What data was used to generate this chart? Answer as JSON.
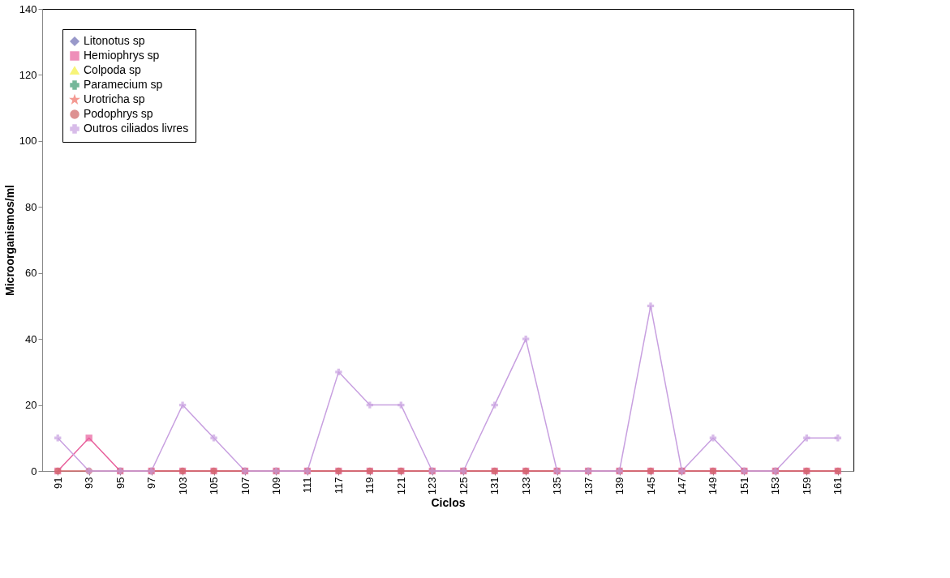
{
  "chart_data": {
    "type": "line",
    "xlabel": "Ciclos",
    "ylabel": "Microorganismos/ml",
    "categories": [
      "91",
      "93",
      "95",
      "97",
      "103",
      "105",
      "107",
      "109",
      "111",
      "117",
      "119",
      "121",
      "123",
      "125",
      "131",
      "133",
      "135",
      "137",
      "139",
      "145",
      "147",
      "149",
      "151",
      "153",
      "159",
      "161"
    ],
    "series": [
      {
        "name": "Litonotus sp",
        "color": "#6e6eb4",
        "marker": "diamond",
        "values": [
          null,
          null,
          null,
          null,
          null,
          null,
          null,
          null,
          null,
          null,
          null,
          null,
          null,
          null,
          null,
          null,
          null,
          null,
          null,
          null,
          null,
          null,
          null,
          null,
          null,
          null
        ]
      },
      {
        "name": "Hemiophrys sp",
        "color": "#e8609c",
        "marker": "square",
        "values": [
          0,
          10,
          0,
          0,
          0,
          0,
          0,
          0,
          0,
          0,
          0,
          0,
          0,
          0,
          0,
          0,
          0,
          0,
          0,
          0,
          0,
          0,
          0,
          0,
          0,
          0
        ]
      },
      {
        "name": "Colpoda sp",
        "color": "#f5f040",
        "marker": "triangle",
        "values": [
          null,
          null,
          null,
          null,
          null,
          null,
          null,
          null,
          null,
          null,
          null,
          null,
          null,
          null,
          null,
          null,
          null,
          null,
          null,
          null,
          null,
          null,
          null,
          null,
          null,
          null
        ]
      },
      {
        "name": "Paramecium sp",
        "color": "#3c9a70",
        "marker": "cross",
        "values": [
          null,
          null,
          null,
          null,
          null,
          null,
          null,
          null,
          null,
          null,
          null,
          null,
          null,
          null,
          null,
          null,
          null,
          null,
          null,
          null,
          null,
          null,
          null,
          null,
          null,
          null
        ]
      },
      {
        "name": "Urotricha sp",
        "color": "#f07066",
        "marker": "star",
        "values": [
          null,
          null,
          null,
          null,
          null,
          null,
          null,
          null,
          null,
          null,
          null,
          null,
          null,
          null,
          null,
          null,
          null,
          null,
          null,
          null,
          null,
          null,
          null,
          null,
          null,
          null
        ]
      },
      {
        "name": "Podophrys sp",
        "color": "#d06464",
        "marker": "circle",
        "values": [
          0,
          0,
          0,
          0,
          0,
          0,
          0,
          0,
          0,
          0,
          0,
          0,
          0,
          0,
          0,
          0,
          0,
          0,
          0,
          0,
          0,
          0,
          0,
          0,
          0,
          0
        ]
      },
      {
        "name": "Outros ciliados livres",
        "color": "#c8a0e0",
        "marker": "cross",
        "values": [
          10,
          0,
          0,
          0,
          20,
          10,
          0,
          0,
          0,
          30,
          20,
          20,
          0,
          0,
          20,
          40,
          0,
          0,
          0,
          50,
          0,
          10,
          0,
          0,
          10,
          10
        ]
      }
    ],
    "ylim": [
      0,
      140
    ],
    "yticks": [
      0,
      20,
      40,
      60,
      80,
      100,
      120,
      140
    ],
    "grid": false,
    "legend": "top left"
  }
}
